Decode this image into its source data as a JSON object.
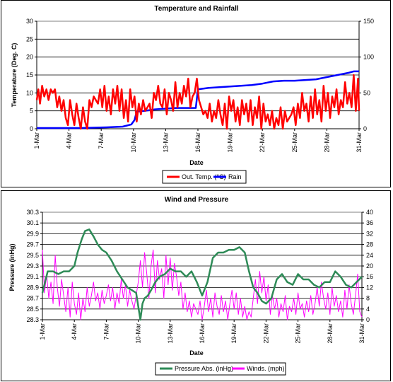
{
  "chart_data": [
    {
      "type": "line",
      "title": "Temperature and Rainfall",
      "xlabel": "Date",
      "ylabel": "Temperature (Deg. C)",
      "ylim": [
        0,
        30
      ],
      "y2lim": [
        0,
        150
      ],
      "yticks": [
        "0",
        "5",
        "10",
        "15",
        "20",
        "25",
        "30"
      ],
      "y2ticks": [
        "0",
        "50",
        "100",
        "150"
      ],
      "x_ticks": [
        "1-Mar",
        "4-Mar",
        "7-Mar",
        "10-Mar",
        "13-Mar",
        "16-Mar",
        "19-Mar",
        "22-Mar",
        "25-Mar",
        "28-Mar",
        "31-Mar"
      ],
      "xlim": [
        1,
        31
      ],
      "grid": true,
      "legend": "bottom",
      "series": [
        {
          "name": "Out. Temp. (°C)",
          "axis": "left",
          "color": "#ff0000",
          "x": [
            1,
            1.15,
            1.3,
            1.5,
            1.7,
            1.9,
            2.1,
            2.3,
            2.5,
            2.7,
            2.9,
            3.1,
            3.3,
            3.5,
            3.7,
            3.9,
            4.1,
            4.3,
            4.5,
            4.7,
            4.9,
            5.1,
            5.3,
            5.5,
            5.7,
            5.9,
            6.1,
            6.3,
            6.5,
            6.7,
            6.9,
            7.1,
            7.3,
            7.5,
            7.7,
            7.9,
            8.1,
            8.3,
            8.5,
            8.7,
            8.9,
            9.1,
            9.3,
            9.5,
            9.7,
            9.9,
            10.1,
            10.3,
            10.5,
            10.7,
            10.9,
            11.1,
            11.3,
            11.5,
            11.7,
            11.9,
            12.1,
            12.3,
            12.5,
            12.7,
            12.9,
            13.1,
            13.3,
            13.5,
            13.7,
            13.9,
            14.1,
            14.3,
            14.5,
            14.7,
            14.9,
            15.1,
            15.3,
            15.5,
            15.7,
            15.9,
            16.1,
            16.3,
            16.5,
            16.7,
            16.9,
            17.1,
            17.3,
            17.5,
            17.7,
            17.9,
            18.1,
            18.3,
            18.5,
            18.7,
            18.9,
            19.1,
            19.3,
            19.5,
            19.7,
            19.9,
            20.1,
            20.3,
            20.5,
            20.7,
            20.9,
            21.1,
            21.3,
            21.5,
            21.7,
            21.9,
            22.1,
            22.3,
            22.5,
            22.7,
            22.9,
            23.1,
            23.3,
            23.5,
            23.7,
            23.9,
            24.1,
            24.3,
            24.5,
            24.7,
            24.9,
            25.1,
            25.3,
            25.5,
            25.7,
            25.9,
            26.1,
            26.3,
            26.5,
            26.7,
            26.9,
            27.1,
            27.3,
            27.5,
            27.7,
            27.9,
            28.1,
            28.3,
            28.5,
            28.7,
            28.9,
            29.1,
            29.3,
            29.5,
            29.7,
            29.9,
            30.1,
            30.3,
            30.5,
            30.7,
            30.9,
            31
          ],
          "values": [
            8,
            11,
            7,
            12,
            9,
            11,
            8,
            11,
            10,
            11,
            6,
            9,
            5,
            8,
            3,
            1,
            8,
            4,
            1,
            7,
            3,
            0,
            6,
            2,
            0,
            8,
            6,
            9,
            8,
            7,
            11,
            6,
            12,
            5,
            9,
            4,
            11,
            7,
            12,
            5,
            11,
            3,
            8,
            2,
            11,
            6,
            9,
            2,
            7,
            4,
            8,
            5,
            6,
            7,
            3,
            10,
            8,
            12,
            7,
            6,
            11,
            4,
            10,
            8,
            5,
            13,
            6,
            10,
            7,
            12,
            9,
            14,
            6,
            9,
            10,
            14,
            8,
            6,
            4,
            5,
            3,
            7,
            2,
            5,
            3,
            8,
            4,
            1,
            7,
            0,
            9,
            5,
            8,
            2,
            6,
            1,
            8,
            4,
            7,
            2,
            8,
            1,
            6,
            3,
            9,
            0,
            7,
            2,
            4,
            1,
            5,
            0,
            3,
            1,
            6,
            0,
            5,
            2,
            3,
            4,
            6,
            1,
            7,
            3,
            10,
            5,
            7,
            2,
            9,
            3,
            11,
            4,
            8,
            2,
            12,
            5,
            10,
            3,
            9,
            6,
            11,
            4,
            8,
            6,
            13,
            7,
            10,
            6,
            15,
            5,
            14,
            5
          ],
          "x_note": ""
        },
        {
          "name": "Rain",
          "axis": "right",
          "color": "#0000ff",
          "x": [
            1,
            5,
            7.5,
            9,
            9.8,
            10.1,
            10.3,
            11,
            12,
            13,
            14,
            15,
            15.8,
            16,
            17,
            18,
            19,
            20,
            21,
            22,
            23,
            24,
            25,
            26,
            27,
            28,
            29,
            30,
            30.5,
            31
          ],
          "values": [
            1,
            1,
            2,
            3,
            6,
            12,
            24,
            25,
            27,
            28,
            29,
            29,
            29,
            55,
            57,
            58,
            59,
            60,
            61,
            63,
            66,
            67,
            67,
            68,
            69,
            72,
            75,
            78,
            80,
            80
          ]
        }
      ]
    },
    {
      "type": "line",
      "title": "Wind and Pressure",
      "xlabel": "Date",
      "ylabel": "Pressure (inHg)",
      "ylim": [
        28.3,
        30.3
      ],
      "y2lim": [
        0,
        40
      ],
      "yticks": [
        "28.3",
        "28.5",
        "28.7",
        "28.9",
        "29.1",
        "29.3",
        "29.5",
        "29.7",
        "29.9",
        "30.1",
        "30.3"
      ],
      "y2ticks": [
        "0",
        "4",
        "8",
        "12",
        "16",
        "20",
        "24",
        "28",
        "32",
        "36",
        "40"
      ],
      "x_ticks": [
        "1-Mar",
        "4-Mar",
        "7-Mar",
        "10-Mar",
        "13-Mar",
        "16-Mar",
        "19-Mar",
        "22-Mar",
        "25-Mar",
        "28-Mar",
        "31-Mar"
      ],
      "xlim": [
        1,
        31
      ],
      "grid": true,
      "legend": "bottom",
      "series": [
        {
          "name": "Pressure Abs. (inHg)",
          "axis": "left",
          "color": "#2e8b57",
          "x": [
            1,
            1.5,
            2,
            2.5,
            3,
            3.5,
            4,
            4.3,
            4.7,
            5,
            5.4,
            5.8,
            6.2,
            6.6,
            7,
            7.5,
            8,
            8.5,
            9,
            9.4,
            9.8,
            10,
            10.2,
            10.4,
            10.6,
            10.9,
            11.2,
            11.6,
            12,
            12.5,
            13,
            13.5,
            14,
            14.5,
            15,
            15.5,
            16,
            16.5,
            17,
            17.5,
            18,
            18.5,
            19,
            19.5,
            20,
            20.4,
            20.8,
            21.2,
            21.6,
            22,
            22.5,
            23,
            23.5,
            24,
            24.5,
            25,
            25.5,
            26,
            26.5,
            27,
            27.5,
            28,
            28.5,
            29,
            29.5,
            30,
            30.5,
            31
          ],
          "values": [
            28.8,
            29.2,
            29.2,
            29.15,
            29.2,
            29.2,
            29.3,
            29.55,
            29.8,
            29.95,
            29.98,
            29.85,
            29.7,
            29.6,
            29.55,
            29.4,
            29.2,
            29.05,
            28.9,
            28.85,
            28.8,
            28.55,
            28.3,
            28.6,
            28.7,
            28.75,
            28.85,
            29.0,
            29.1,
            29.15,
            29.25,
            29.2,
            29.2,
            29.1,
            29.2,
            29.0,
            28.75,
            29.0,
            29.45,
            29.55,
            29.55,
            29.6,
            29.6,
            29.65,
            29.55,
            29.2,
            28.9,
            28.8,
            28.65,
            28.6,
            28.7,
            29.05,
            29.15,
            29.0,
            28.95,
            29.15,
            29.05,
            29.05,
            28.95,
            28.9,
            29.0,
            29.0,
            29.2,
            29.1,
            28.95,
            28.9,
            29.0,
            29.1
          ]
        },
        {
          "name": "Winds. (mph)",
          "axis": "right",
          "color": "#ff00ff",
          "x": [
            1,
            1.2,
            1.4,
            1.6,
            1.8,
            2,
            2.2,
            2.4,
            2.6,
            2.8,
            3,
            3.2,
            3.4,
            3.6,
            3.8,
            4,
            4.2,
            4.4,
            4.6,
            4.8,
            5,
            5.2,
            5.4,
            5.6,
            5.8,
            6,
            6.2,
            6.4,
            6.6,
            6.8,
            7,
            7.2,
            7.4,
            7.6,
            7.8,
            8,
            8.2,
            8.4,
            8.6,
            8.8,
            9,
            9.2,
            9.4,
            9.6,
            9.8,
            10,
            10.2,
            10.4,
            10.6,
            10.8,
            11,
            11.2,
            11.4,
            11.6,
            11.8,
            12,
            12.2,
            12.4,
            12.6,
            12.8,
            13,
            13.2,
            13.4,
            13.6,
            13.8,
            14,
            14.2,
            14.4,
            14.6,
            14.8,
            15,
            15.2,
            15.4,
            15.6,
            15.8,
            16,
            16.2,
            16.4,
            16.6,
            16.8,
            17,
            17.2,
            17.4,
            17.6,
            17.8,
            18,
            18.2,
            18.4,
            18.6,
            18.8,
            19,
            19.2,
            19.4,
            19.6,
            19.8,
            20,
            20.2,
            20.4,
            20.6,
            20.8,
            21,
            21.2,
            21.4,
            21.6,
            21.8,
            22,
            22.2,
            22.4,
            22.6,
            22.8,
            23,
            23.2,
            23.4,
            23.6,
            23.8,
            24,
            24.2,
            24.4,
            24.6,
            24.8,
            25,
            25.2,
            25.4,
            25.6,
            25.8,
            26,
            26.2,
            26.4,
            26.6,
            26.8,
            27,
            27.2,
            27.4,
            27.6,
            27.8,
            28,
            28.2,
            28.4,
            28.6,
            28.8,
            29,
            29.2,
            29.4,
            29.6,
            29.8,
            30,
            30.2,
            30.4,
            30.6,
            30.8,
            31
          ],
          "values": [
            26,
            10,
            17,
            8,
            14,
            6,
            24,
            12,
            5,
            15,
            9,
            3,
            12,
            1,
            14,
            6,
            2,
            10,
            0,
            8,
            3,
            12,
            5,
            9,
            14,
            7,
            10,
            4,
            11,
            6,
            9,
            13,
            7,
            12,
            4,
            10,
            6,
            15,
            8,
            13,
            5,
            11,
            7,
            4,
            9,
            14,
            22,
            12,
            25,
            17,
            8,
            20,
            26,
            10,
            22,
            15,
            19,
            8,
            24,
            13,
            23,
            11,
            21,
            16,
            9,
            14,
            4,
            10,
            3,
            7,
            1,
            6,
            4,
            2,
            7,
            0,
            5,
            11,
            3,
            8,
            1,
            10,
            5,
            2,
            9,
            3,
            7,
            0,
            6,
            11,
            4,
            10,
            2,
            8,
            1,
            5,
            0,
            3,
            1,
            8,
            15,
            6,
            18,
            10,
            16,
            7,
            13,
            2,
            9,
            4,
            8,
            1,
            6,
            3,
            9,
            0,
            5,
            3,
            8,
            2,
            10,
            4,
            6,
            1,
            7,
            3,
            9,
            2,
            6,
            12,
            5,
            14,
            8,
            4,
            10,
            2,
            12,
            5,
            9,
            3,
            7,
            1,
            11,
            4,
            13,
            6,
            2,
            9,
            17,
            3,
            1
          ]
        }
      ]
    }
  ]
}
